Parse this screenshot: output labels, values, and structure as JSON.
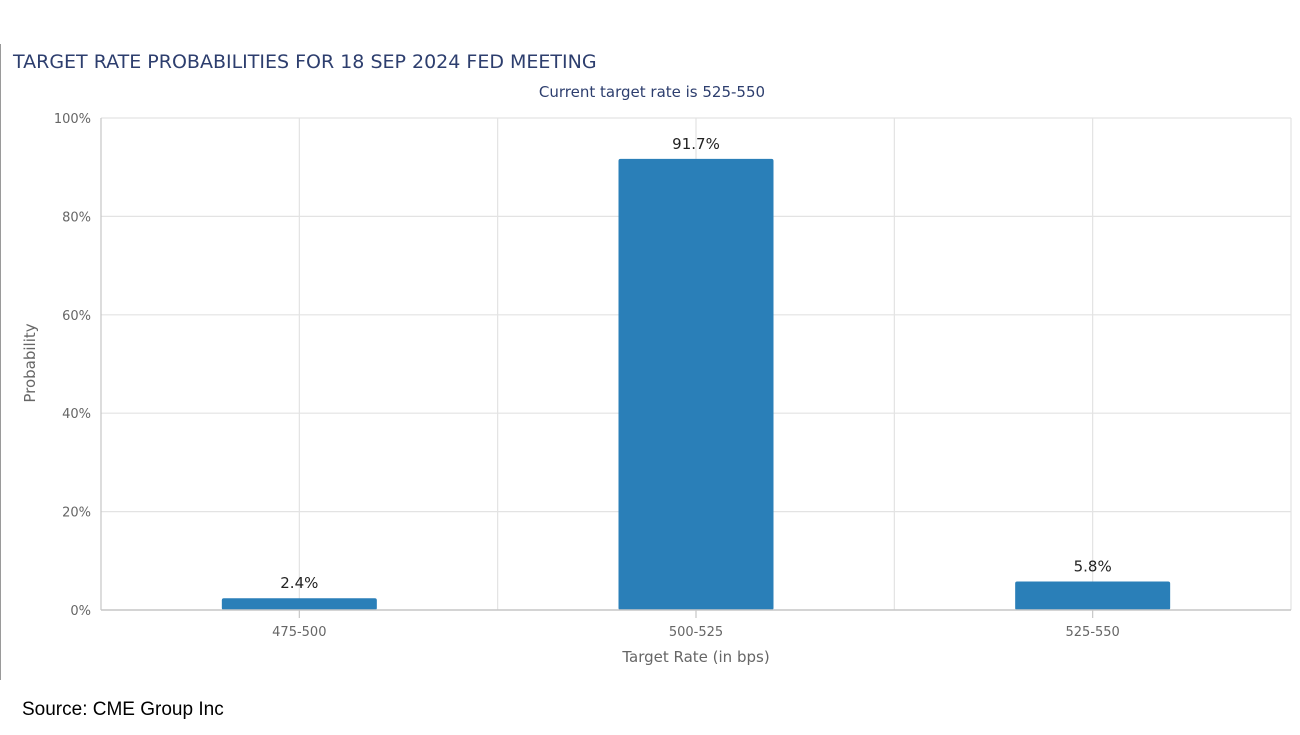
{
  "chart_data": {
    "type": "bar",
    "title": "TARGET RATE PROBABILITIES FOR 18 SEP 2024 FED MEETING",
    "subtitle": "Current target rate is 525-550",
    "xlabel": "Target Rate (in bps)",
    "ylabel": "Probability",
    "categories": [
      "475-500",
      "500-525",
      "525-550"
    ],
    "values": [
      2.4,
      91.7,
      5.8
    ],
    "data_labels": [
      "2.4%",
      "91.7%",
      "5.8%"
    ],
    "ylim": [
      0,
      100
    ],
    "yticks": [
      "0%",
      "20%",
      "40%",
      "60%",
      "80%",
      "100%"
    ],
    "grid": true,
    "bar_color": "#2a7fb8",
    "title_color": "#2d3e6e",
    "subtitle_color": "#2d3e6e"
  },
  "source": "Source: CME Group Inc"
}
